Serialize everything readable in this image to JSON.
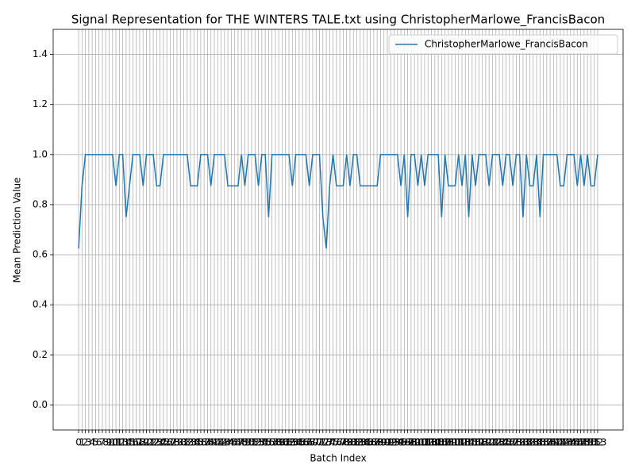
{
  "chart_data": {
    "type": "line",
    "title": "Signal Representation for THE WINTERS TALE.txt using ChristopherMarlowe_FrancisBacon",
    "xlabel": "Batch Index",
    "ylabel": "Mean Prediction Value",
    "x": [
      0,
      1,
      2,
      3,
      4,
      5,
      6,
      7,
      8,
      9,
      10,
      11,
      12,
      13,
      14,
      15,
      16,
      17,
      18,
      19,
      20,
      21,
      22,
      23,
      24,
      25,
      26,
      27,
      28,
      29,
      30,
      31,
      32,
      33,
      34,
      35,
      36,
      37,
      38,
      39,
      40,
      41,
      42,
      43,
      44,
      45,
      46,
      47,
      48,
      49,
      50,
      51,
      52,
      53,
      54,
      55,
      56,
      57,
      58,
      59,
      60,
      61,
      62,
      63,
      64,
      65,
      66,
      67,
      68,
      69,
      70,
      71,
      72,
      73,
      74,
      75,
      76,
      77,
      78,
      79,
      80,
      81,
      82,
      83,
      84,
      85,
      86,
      87,
      88,
      89,
      90,
      91,
      92,
      93,
      94,
      95,
      96,
      97,
      98,
      99,
      100,
      101,
      102,
      103,
      104,
      105,
      106,
      107,
      108,
      109,
      110,
      111,
      112,
      113,
      114,
      115,
      116,
      117,
      118,
      119,
      120,
      121,
      122,
      123,
      124,
      125,
      126,
      127,
      128,
      129,
      130,
      131,
      132,
      133,
      134,
      135,
      136,
      137,
      138,
      139,
      140,
      141,
      142,
      143,
      144,
      145,
      146,
      147,
      148,
      149,
      150,
      151,
      152,
      153
    ],
    "series": [
      {
        "name": "ChristopherMarlowe_FrancisBacon",
        "color": "#1f77b4",
        "values": [
          0.625,
          0.875,
          1,
          1,
          1,
          1,
          1,
          1,
          1,
          1,
          1,
          0.875,
          1,
          1,
          0.75,
          0.875,
          1,
          1,
          1,
          0.875,
          1,
          1,
          1,
          0.875,
          0.875,
          1,
          1,
          1,
          1,
          1,
          1,
          1,
          1,
          0.875,
          0.875,
          0.875,
          1,
          1,
          1,
          0.875,
          1,
          1,
          1,
          1,
          0.875,
          0.875,
          0.875,
          0.875,
          1,
          0.875,
          1,
          1,
          1,
          0.875,
          1,
          1,
          0.75,
          1,
          1,
          1,
          1,
          1,
          1,
          0.875,
          1,
          1,
          1,
          1,
          0.875,
          1,
          1,
          1,
          0.75,
          0.625,
          0.875,
          1,
          0.875,
          0.875,
          0.875,
          1,
          0.875,
          1,
          1,
          0.875,
          0.875,
          0.875,
          0.875,
          0.875,
          0.875,
          1,
          1,
          1,
          1,
          1,
          1,
          0.875,
          1,
          0.75,
          1,
          1,
          0.875,
          1,
          0.875,
          1,
          1,
          1,
          1,
          0.75,
          1,
          0.875,
          0.875,
          0.875,
          1,
          0.875,
          1,
          0.75,
          1,
          0.875,
          1,
          1,
          1,
          0.875,
          1,
          1,
          1,
          0.875,
          1,
          1,
          0.875,
          1,
          1,
          0.75,
          1,
          0.875,
          0.875,
          1,
          0.75,
          1,
          1,
          1,
          1,
          1,
          0.875,
          0.875,
          1,
          1,
          1,
          0.875,
          1,
          0.875,
          1,
          0.875,
          0.875,
          1
        ]
      }
    ],
    "xlim": [
      -7.5,
      160.5
    ],
    "ylim": [
      -0.1,
      1.5
    ],
    "xticks": [
      0,
      1,
      2,
      3,
      4,
      5,
      6,
      7,
      8,
      9,
      10,
      11,
      12,
      13,
      14,
      15,
      16,
      17,
      18,
      19,
      20,
      21,
      22,
      23,
      24,
      25,
      26,
      27,
      28,
      29,
      30,
      31,
      32,
      33,
      34,
      35,
      36,
      37,
      38,
      39,
      40,
      41,
      42,
      43,
      44,
      45,
      46,
      47,
      48,
      49,
      50,
      51,
      52,
      53,
      54,
      55,
      56,
      57,
      58,
      59,
      60,
      61,
      62,
      63,
      64,
      65,
      66,
      67,
      68,
      69,
      70,
      71,
      72,
      73,
      74,
      75,
      76,
      77,
      78,
      79,
      80,
      81,
      82,
      83,
      84,
      85,
      86,
      87,
      88,
      89,
      90,
      91,
      92,
      93,
      94,
      95,
      96,
      97,
      98,
      99,
      100,
      101,
      102,
      103,
      104,
      105,
      106,
      107,
      108,
      109,
      110,
      111,
      112,
      113,
      114,
      115,
      116,
      117,
      118,
      119,
      120,
      121,
      122,
      123,
      124,
      125,
      126,
      127,
      128,
      129,
      130,
      131,
      132,
      133,
      134,
      135,
      136,
      137,
      138,
      139,
      140,
      141,
      142,
      143,
      144,
      145,
      146,
      147,
      148,
      149,
      150,
      151,
      152,
      153
    ],
    "yticks": [
      {
        "value": 0,
        "label": "0.0"
      },
      {
        "value": 0.2,
        "label": "0.2"
      },
      {
        "value": 0.4,
        "label": "0.4"
      },
      {
        "value": 0.6,
        "label": "0.6"
      },
      {
        "value": 0.8,
        "label": "0.8"
      },
      {
        "value": 1,
        "label": "1.0"
      },
      {
        "value": 1.2,
        "label": "1.2"
      },
      {
        "value": 1.4,
        "label": "1.4"
      }
    ],
    "grid": true,
    "legend": "upper right"
  }
}
